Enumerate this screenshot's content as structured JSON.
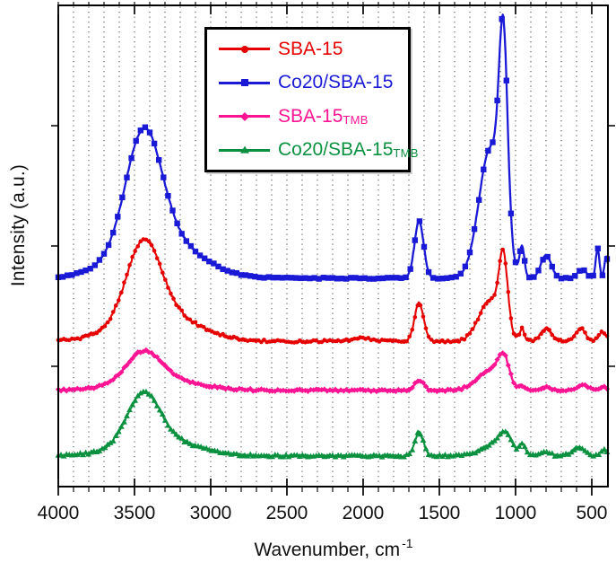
{
  "figure": {
    "ylabel": "Intensity (a.u.)",
    "xlabel": "Wavenumber, cm",
    "xlabel_sup": "-1"
  },
  "legend": {
    "items": [
      {
        "label": "SBA-15",
        "sub": "",
        "color": "#e60000",
        "marker": "circle"
      },
      {
        "label": "Co20/SBA-15",
        "sub": "",
        "color": "#1a1ad6",
        "marker": "square"
      },
      {
        "label": "SBA-15",
        "sub": "TMB",
        "color": "#ff1493",
        "marker": "diamond"
      },
      {
        "label": "Co20/SBA-15",
        "sub": "TMB",
        "color": "#0a9140",
        "marker": "triangle"
      }
    ]
  },
  "chart_data": {
    "type": "line",
    "description": "FTIR transmittance-style spectra of four samples, vertically offset; y axis in arbitrary units (unlabeled), x axis reversed from 4000 to ~400 cm-1",
    "xlabel": "Wavenumber, cm-1",
    "ylabel": "Intensity (a.u.)",
    "x_range": [
      4000,
      394
    ],
    "x_major_ticks": [
      4000,
      3500,
      3000,
      2500,
      2000,
      1500,
      1000,
      500
    ],
    "x_minor_step": 100,
    "grid": "vertical dotted gridlines every 100 cm-1",
    "y_ticks": [
      0.25,
      0.5,
      0.75
    ],
    "legend_position": "upper-left-inside",
    "main_band_assignments_cm1": [
      3430,
      1633,
      1165,
      1080,
      958,
      800,
      570,
      460
    ],
    "series": [
      {
        "name": "SBA-15TMB",
        "color": "#ff1493",
        "marker": "diamond",
        "marker_every": 3,
        "width": 2.4,
        "baseline": 0.2,
        "noise": 0.0024,
        "peaks": [
          [
            3440,
            110,
            0.06
          ],
          [
            3350,
            240,
            0.024
          ],
          [
            1633,
            30,
            0.021
          ],
          [
            1165,
            85,
            0.042
          ],
          [
            1078,
            35,
            0.052
          ],
          [
            958,
            16,
            0.008
          ],
          [
            800,
            30,
            0.007
          ],
          [
            560,
            32,
            0.012
          ],
          [
            420,
            20,
            0.008
          ]
        ]
      },
      {
        "name": "Co20/SBA-15TMB",
        "color": "#0a9140",
        "marker": "triangle",
        "marker_every": 3,
        "width": 2.1,
        "baseline": 0.064,
        "noise": 0.0024,
        "peaks": [
          [
            3440,
            105,
            0.098
          ],
          [
            3350,
            235,
            0.036
          ],
          [
            1633,
            28,
            0.049
          ],
          [
            1120,
            90,
            0.028
          ],
          [
            1065,
            35,
            0.028
          ],
          [
            955,
            18,
            0.022
          ],
          [
            800,
            30,
            0.008
          ],
          [
            590,
            40,
            0.018
          ],
          [
            420,
            20,
            0.012
          ]
        ]
      },
      {
        "name": "SBA-15",
        "color": "#e60000",
        "marker": "circle",
        "marker_every": 3,
        "width": 2.1,
        "baseline": 0.302,
        "noise": 0.0027,
        "peaks": [
          [
            3440,
            110,
            0.155
          ],
          [
            3350,
            240,
            0.062
          ],
          [
            2000,
            70,
            0.006
          ],
          [
            1633,
            30,
            0.079
          ],
          [
            1165,
            75,
            0.085
          ],
          [
            1080,
            28,
            0.145
          ],
          [
            958,
            16,
            0.024
          ],
          [
            800,
            34,
            0.026
          ],
          [
            572,
            30,
            0.028
          ],
          [
            430,
            25,
            0.018
          ]
        ]
      },
      {
        "name": "Co20/SBA-15",
        "color": "#1a1ad6",
        "marker": "square",
        "marker_every": 5,
        "width": 2.3,
        "baseline": 0.433,
        "noise": 0.0013,
        "peaks": [
          [
            3440,
            115,
            0.23
          ],
          [
            3350,
            250,
            0.088
          ],
          [
            1633,
            30,
            0.118
          ],
          [
            1165,
            75,
            0.27
          ],
          [
            1080,
            28,
            0.4
          ],
          [
            958,
            16,
            0.062
          ],
          [
            800,
            34,
            0.047
          ],
          [
            565,
            30,
            0.018
          ],
          [
            462,
            12,
            0.062
          ],
          [
            405,
            12,
            0.045
          ]
        ]
      }
    ]
  }
}
